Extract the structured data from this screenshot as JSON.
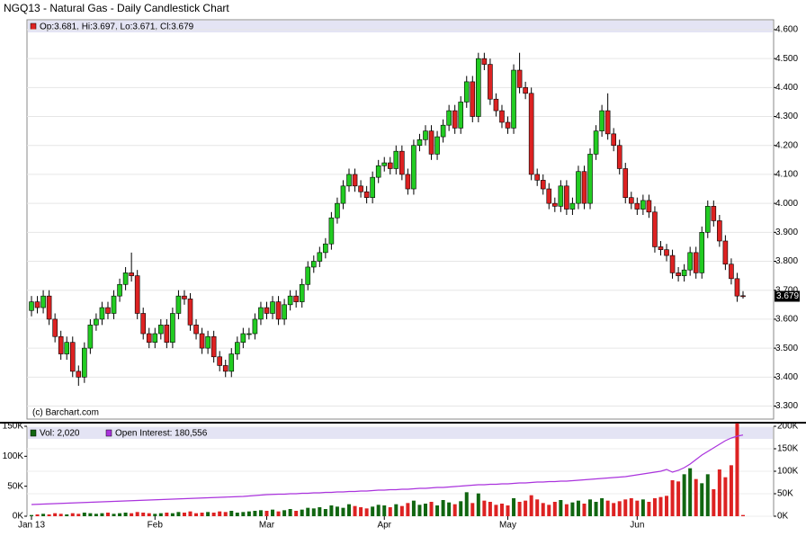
{
  "chart_data": [
    {
      "type": "candlestick",
      "title": "NGQ13 - Natural Gas - Daily Candlestick Chart",
      "legend": "Op:3.681, Hi:3.697, Lo:3.671, Cl:3.679",
      "annotation": "(c) Barchart.com",
      "up_color": "#22cc22",
      "down_color": "#dd2222",
      "grid": true,
      "ylim": [
        3.255,
        4.634
      ],
      "yticks": [
        {
          "value": 3.3,
          "label": "3.300"
        },
        {
          "value": 3.4,
          "label": "3.400"
        },
        {
          "value": 3.5,
          "label": "3.500"
        },
        {
          "value": 3.6,
          "label": "3.600"
        },
        {
          "value": 3.7,
          "label": "3.700"
        },
        {
          "value": 3.8,
          "label": "3.800"
        },
        {
          "value": 3.9,
          "label": "3.900"
        },
        {
          "value": 4.0,
          "label": "4.000"
        },
        {
          "value": 4.1,
          "label": "4.100"
        },
        {
          "value": 4.2,
          "label": "4.200"
        },
        {
          "value": 4.3,
          "label": "4.300"
        },
        {
          "value": 4.4,
          "label": "4.400"
        },
        {
          "value": 4.5,
          "label": "4.500"
        },
        {
          "value": 4.6,
          "label": "4.600"
        }
      ],
      "open": [
        3.63,
        3.66,
        3.64,
        3.68,
        3.6,
        3.54,
        3.48,
        3.52,
        3.42,
        3.4,
        3.5,
        3.58,
        3.6,
        3.64,
        3.62,
        3.68,
        3.72,
        3.76,
        3.75,
        3.62,
        3.55,
        3.52,
        3.55,
        3.58,
        3.52,
        3.62,
        3.68,
        3.67,
        3.58,
        3.55,
        3.5,
        3.54,
        3.47,
        3.44,
        3.42,
        3.48,
        3.52,
        3.55,
        3.55,
        3.6,
        3.64,
        3.62,
        3.66,
        3.6,
        3.65,
        3.68,
        3.66,
        3.72,
        3.78,
        3.8,
        3.83,
        3.86,
        3.95,
        4.0,
        4.06,
        4.1,
        4.06,
        4.04,
        4.02,
        4.09,
        4.13,
        4.14,
        4.12,
        4.18,
        4.1,
        4.05,
        4.2,
        4.22,
        4.25,
        4.17,
        4.23,
        4.27,
        4.32,
        4.26,
        4.35,
        4.42,
        4.3,
        4.5,
        4.48,
        4.36,
        4.32,
        4.28,
        4.26,
        4.46,
        4.4,
        4.38,
        4.1,
        4.08,
        4.05,
        4.0,
        3.99,
        4.06,
        3.98,
        4.0,
        4.11,
        4.0,
        4.17,
        4.25,
        4.32,
        4.24,
        4.2,
        4.12,
        4.02,
        4.0,
        3.98,
        4.01,
        3.97,
        3.85,
        3.84,
        3.82,
        3.76,
        3.75,
        3.77,
        3.83,
        3.76,
        3.9,
        3.99,
        3.94,
        3.87,
        3.79,
        3.74,
        3.681
      ],
      "high": [
        3.68,
        3.68,
        3.7,
        3.7,
        3.62,
        3.56,
        3.54,
        3.54,
        3.44,
        3.52,
        3.6,
        3.62,
        3.66,
        3.66,
        3.7,
        3.74,
        3.78,
        3.83,
        3.77,
        3.64,
        3.57,
        3.57,
        3.6,
        3.6,
        3.64,
        3.7,
        3.7,
        3.69,
        3.6,
        3.57,
        3.56,
        3.56,
        3.49,
        3.46,
        3.5,
        3.54,
        3.57,
        3.57,
        3.62,
        3.66,
        3.66,
        3.68,
        3.68,
        3.67,
        3.7,
        3.7,
        3.74,
        3.8,
        3.82,
        3.85,
        3.88,
        3.97,
        4.02,
        4.08,
        4.12,
        4.12,
        4.08,
        4.06,
        4.11,
        4.15,
        4.16,
        4.16,
        4.2,
        4.2,
        4.12,
        4.22,
        4.24,
        4.27,
        4.27,
        4.25,
        4.29,
        4.34,
        4.34,
        4.37,
        4.44,
        4.44,
        4.52,
        4.52,
        4.5,
        4.38,
        4.34,
        4.3,
        4.48,
        4.52,
        4.42,
        4.4,
        4.12,
        4.1,
        4.07,
        4.02,
        4.08,
        4.08,
        4.02,
        4.13,
        4.13,
        4.19,
        4.27,
        4.34,
        4.38,
        4.26,
        4.22,
        4.14,
        4.04,
        4.02,
        4.03,
        4.03,
        3.99,
        3.87,
        3.86,
        3.84,
        3.78,
        3.79,
        3.85,
        3.85,
        3.92,
        4.01,
        4.01,
        3.96,
        3.89,
        3.81,
        3.76,
        3.697
      ],
      "low": [
        3.61,
        3.62,
        3.62,
        3.58,
        3.52,
        3.46,
        3.46,
        3.4,
        3.37,
        3.38,
        3.48,
        3.56,
        3.58,
        3.6,
        3.6,
        3.66,
        3.7,
        3.73,
        3.6,
        3.53,
        3.5,
        3.5,
        3.53,
        3.5,
        3.5,
        3.6,
        3.65,
        3.56,
        3.53,
        3.48,
        3.48,
        3.45,
        3.42,
        3.4,
        3.4,
        3.46,
        3.5,
        3.53,
        3.53,
        3.58,
        3.6,
        3.6,
        3.58,
        3.58,
        3.63,
        3.64,
        3.64,
        3.7,
        3.76,
        3.78,
        3.81,
        3.84,
        3.93,
        3.98,
        4.04,
        4.04,
        4.02,
        4.0,
        4.0,
        4.07,
        4.11,
        4.1,
        4.1,
        4.08,
        4.03,
        4.03,
        4.18,
        4.2,
        4.15,
        4.15,
        4.21,
        4.25,
        4.24,
        4.24,
        4.33,
        4.28,
        4.28,
        4.46,
        4.34,
        4.3,
        4.26,
        4.24,
        4.24,
        4.38,
        4.36,
        4.08,
        4.06,
        4.03,
        3.98,
        3.97,
        3.97,
        3.96,
        3.96,
        3.98,
        3.98,
        3.98,
        4.15,
        4.23,
        4.22,
        4.18,
        4.1,
        4.0,
        3.98,
        3.96,
        3.96,
        3.95,
        3.83,
        3.82,
        3.8,
        3.74,
        3.73,
        3.73,
        3.75,
        3.74,
        3.74,
        3.88,
        3.92,
        3.85,
        3.77,
        3.72,
        3.66,
        3.671
      ],
      "close": [
        3.66,
        3.64,
        3.68,
        3.6,
        3.54,
        3.48,
        3.52,
        3.42,
        3.4,
        3.5,
        3.58,
        3.6,
        3.64,
        3.62,
        3.68,
        3.72,
        3.76,
        3.75,
        3.62,
        3.55,
        3.52,
        3.55,
        3.58,
        3.52,
        3.62,
        3.68,
        3.67,
        3.58,
        3.55,
        3.5,
        3.54,
        3.47,
        3.44,
        3.42,
        3.48,
        3.52,
        3.55,
        3.55,
        3.6,
        3.64,
        3.62,
        3.66,
        3.6,
        3.65,
        3.68,
        3.66,
        3.72,
        3.78,
        3.8,
        3.83,
        3.86,
        3.95,
        4.0,
        4.06,
        4.1,
        4.06,
        4.04,
        4.02,
        4.09,
        4.13,
        4.14,
        4.12,
        4.18,
        4.1,
        4.05,
        4.2,
        4.22,
        4.25,
        4.17,
        4.23,
        4.27,
        4.32,
        4.26,
        4.35,
        4.42,
        4.3,
        4.5,
        4.48,
        4.36,
        4.32,
        4.28,
        4.26,
        4.46,
        4.4,
        4.38,
        4.1,
        4.08,
        4.05,
        4.0,
        3.99,
        4.06,
        3.98,
        4.0,
        4.11,
        4.0,
        4.17,
        4.25,
        4.32,
        4.24,
        4.2,
        4.12,
        4.02,
        4.0,
        3.98,
        4.01,
        3.97,
        3.85,
        3.84,
        3.82,
        3.76,
        3.75,
        3.77,
        3.83,
        3.76,
        3.9,
        3.99,
        3.94,
        3.87,
        3.79,
        3.74,
        3.68,
        3.679
      ]
    },
    {
      "type": "volume",
      "xticks": [
        {
          "value": 0,
          "label": "Jan 13"
        },
        {
          "value": 21,
          "label": "Feb"
        },
        {
          "value": 40,
          "label": "Mar"
        },
        {
          "value": 60,
          "label": "Apr"
        },
        {
          "value": 81,
          "label": "May"
        },
        {
          "value": 103,
          "label": "Jun"
        }
      ],
      "ylim": [
        0,
        150000
      ],
      "yticks": [
        {
          "value": 0,
          "label": "0K"
        },
        {
          "value": 50000,
          "label": "50K"
        },
        {
          "value": 100000,
          "label": "100K"
        },
        {
          "value": 150000,
          "label": "150K"
        }
      ],
      "y2lim": [
        0,
        200000
      ],
      "y2ticks": [
        {
          "value": 0,
          "label": "0K"
        },
        {
          "value": 50000,
          "label": "50K"
        },
        {
          "value": 100000,
          "label": "100K"
        },
        {
          "value": 150000,
          "label": "150K"
        },
        {
          "value": 200000,
          "label": "200K"
        }
      ],
      "series": [
        {
          "name": "Vol: 2,020",
          "color": "#116611",
          "values": [
            2000,
            3000,
            4000,
            3000,
            5000,
            4000,
            3000,
            5000,
            4000,
            6000,
            5000,
            4000,
            5000,
            6000,
            4000,
            5000,
            6000,
            5000,
            7000,
            6000,
            5000,
            4000,
            5000,
            6000,
            5000,
            7000,
            6000,
            8000,
            5000,
            6000,
            7000,
            6000,
            8000,
            7000,
            9000,
            6000,
            7000,
            8000,
            9000,
            10000,
            9000,
            11000,
            8000,
            10000,
            12000,
            9000,
            11000,
            14000,
            13000,
            15000,
            12000,
            18000,
            16000,
            14000,
            20000,
            17000,
            15000,
            13000,
            16000,
            19000,
            18000,
            15000,
            20000,
            17000,
            22000,
            26000,
            19000,
            21000,
            24000,
            18000,
            27000,
            23000,
            20000,
            25000,
            40000,
            22000,
            38000,
            26000,
            24000,
            19000,
            21000,
            18000,
            30000,
            24000,
            26000,
            35000,
            28000,
            22000,
            19000,
            24000,
            27000,
            20000,
            23000,
            26000,
            21000,
            28000,
            24000,
            30000,
            26000,
            22000,
            25000,
            28000,
            30000,
            26000,
            28000,
            24000,
            30000,
            32000,
            34000,
            60000,
            58000,
            70000,
            80000,
            62000,
            55000,
            70000,
            45000,
            78000,
            65000,
            85000,
            155000,
            2020
          ]
        },
        {
          "name": "Open Interest: 180,556",
          "color": "#aa33dd",
          "axis": "y2",
          "values": [
            26000,
            26500,
            27000,
            27500,
            28000,
            28500,
            29000,
            29500,
            30000,
            30500,
            31000,
            31500,
            32000,
            32500,
            33000,
            33500,
            34000,
            34500,
            35000,
            35500,
            36000,
            36500,
            37000,
            37500,
            38000,
            38500,
            39000,
            39500,
            40000,
            40500,
            41000,
            41500,
            42000,
            42500,
            43000,
            43500,
            44000,
            45000,
            46000,
            47000,
            48000,
            48500,
            49000,
            49000,
            50000,
            50000,
            51000,
            51000,
            52000,
            52000,
            53000,
            53000,
            54000,
            54000,
            55000,
            55000,
            56000,
            56000,
            57000,
            58000,
            58000,
            59000,
            59000,
            60000,
            60000,
            61000,
            62000,
            62000,
            63000,
            64000,
            64000,
            65000,
            66000,
            67000,
            68000,
            69000,
            70000,
            70000,
            71000,
            71000,
            72000,
            72000,
            73000,
            74000,
            74000,
            75000,
            76000,
            76000,
            77000,
            77000,
            78000,
            78000,
            79000,
            80000,
            81000,
            82000,
            83000,
            84000,
            85000,
            86000,
            87000,
            88000,
            90000,
            92000,
            94000,
            96000,
            98000,
            100000,
            104000,
            98000,
            102000,
            108000,
            116000,
            126000,
            136000,
            144000,
            152000,
            160000,
            168000,
            174000,
            178000,
            180556
          ]
        }
      ]
    }
  ]
}
